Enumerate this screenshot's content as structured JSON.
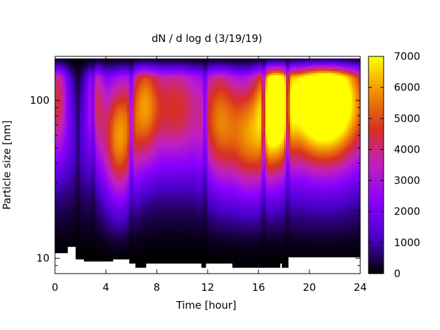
{
  "chart_data": {
    "type": "heatmap",
    "title": "dN / d log d (3/19/19)",
    "xlabel": "Time [hour]",
    "ylabel": "Particle size [nm]",
    "x_range": [
      0,
      24
    ],
    "x_ticks": [
      0,
      4,
      8,
      12,
      16,
      20,
      24
    ],
    "y_scale": "log",
    "y_range": [
      8,
      190
    ],
    "y_ticks": [
      {
        "value": 10,
        "label": "10"
      },
      {
        "value": 100,
        "label": "100"
      }
    ],
    "colorbar": {
      "range": [
        0,
        7000
      ],
      "ticks": [
        0,
        1000,
        2000,
        3000,
        4000,
        5000,
        6000,
        7000
      ],
      "colormap": "gnuplot-pm3d-black-purple-red-yellow"
    },
    "color_stops": [
      "#000000",
      "#4a00c8",
      "#8a00ff",
      "#c020c0",
      "#d83020",
      "#f09000",
      "#ffff00"
    ],
    "grid": false,
    "legend": "none",
    "peak_modes": [
      {
        "t_center": 0.2,
        "t_width": 0.6,
        "d_nm": 110,
        "log_width": 0.28,
        "value": 3600
      },
      {
        "t_center": 3.2,
        "t_width": 0.5,
        "d_nm": 110,
        "log_width": 0.25,
        "value": 3000
      },
      {
        "t_center": 5.0,
        "t_width": 0.9,
        "d_nm": 60,
        "log_width": 0.3,
        "value": 4600
      },
      {
        "t_center": 7.0,
        "t_width": 0.8,
        "d_nm": 100,
        "log_width": 0.28,
        "value": 3700
      },
      {
        "t_center": 9.5,
        "t_width": 1.6,
        "d_nm": 100,
        "log_width": 0.28,
        "value": 3700
      },
      {
        "t_center": 13.0,
        "t_width": 1.0,
        "d_nm": 80,
        "log_width": 0.32,
        "value": 3900
      },
      {
        "t_center": 15.2,
        "t_width": 1.0,
        "d_nm": 60,
        "log_width": 0.28,
        "value": 3700
      },
      {
        "t_center": 17.2,
        "t_width": 0.9,
        "d_nm": 95,
        "log_width": 0.3,
        "value": 5600
      },
      {
        "t_center": 21.2,
        "t_width": 2.2,
        "d_nm": 105,
        "log_width": 0.26,
        "value": 6700
      },
      {
        "t_center": 21.0,
        "t_width": 3.0,
        "d_nm": 100,
        "log_width": 0.4,
        "value": 2400
      }
    ],
    "background_level": 1200,
    "vertical_dips_hours": [
      1.8,
      3.0,
      6.0,
      11.8,
      16.4,
      18.3
    ],
    "missing_lower_bound_nm": [
      {
        "t": [
          0,
          1.0
        ],
        "d_nm": 11.0
      },
      {
        "t": [
          1.0,
          1.6
        ],
        "d_nm": 11.8
      },
      {
        "t": [
          1.6,
          2.3
        ],
        "d_nm": 10.0
      },
      {
        "t": [
          2.3,
          4.5
        ],
        "d_nm": 9.6
      },
      {
        "t": [
          4.5,
          5.9
        ],
        "d_nm": 10.0
      },
      {
        "t": [
          5.9,
          6.3
        ],
        "d_nm": 9.2
      },
      {
        "t": [
          6.3,
          7.2
        ],
        "d_nm": 8.8
      },
      {
        "t": [
          7.2,
          11.5
        ],
        "d_nm": 9.2
      },
      {
        "t": [
          11.5,
          11.9
        ],
        "d_nm": 8.8
      },
      {
        "t": [
          11.9,
          14.0
        ],
        "d_nm": 9.2
      },
      {
        "t": [
          14.0,
          17.6
        ],
        "d_nm": 8.8
      },
      {
        "t": [
          17.6,
          17.9
        ],
        "d_nm": 9.2
      },
      {
        "t": [
          17.9,
          18.3
        ],
        "d_nm": 8.8
      },
      {
        "t": [
          18.3,
          24
        ],
        "d_nm": 10.3
      }
    ],
    "upper_valid_d_nm": 180
  }
}
